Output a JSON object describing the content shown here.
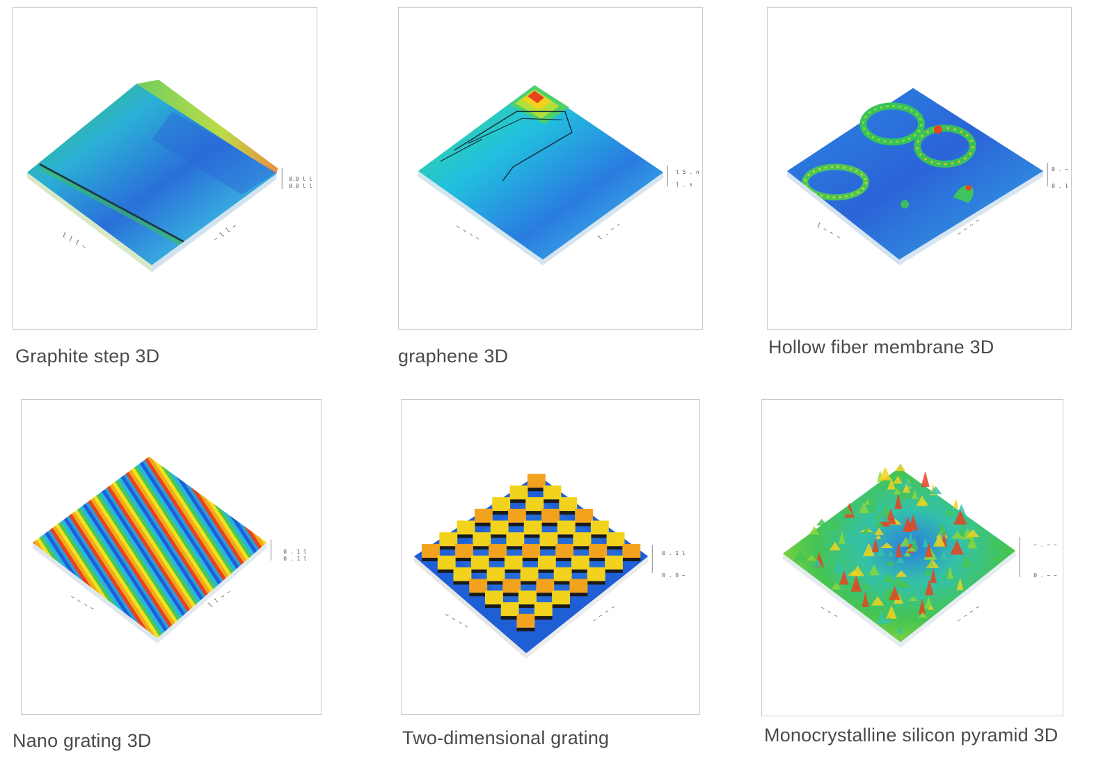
{
  "gallery": {
    "items": [
      {
        "caption": "Graphite step 3D",
        "image_name": "graphite-step-3d-image"
      },
      {
        "caption": "graphene 3D",
        "image_name": "graphene-3d-image"
      },
      {
        "caption": "Hollow fiber membrane 3D",
        "image_name": "hollow-fiber-membrane-3d-image"
      },
      {
        "caption": "Nano grating 3D",
        "image_name": "nano-grating-3d-image"
      },
      {
        "caption": "Two-dimensional grating",
        "image_name": "two-dimensional-grating-image"
      },
      {
        "caption": "Monocrystalline silicon pyramid 3D",
        "image_name": "monocrystalline-silicon-pyramid-3d-image"
      }
    ]
  },
  "palette": {
    "low": "#1f5fd6",
    "mid_low": "#25b7e0",
    "mid": "#34c85a",
    "mid_high": "#f2d21c",
    "high": "#e8431f",
    "frame": "#c9c9c9",
    "caption_text": "#4a4a4a"
  }
}
